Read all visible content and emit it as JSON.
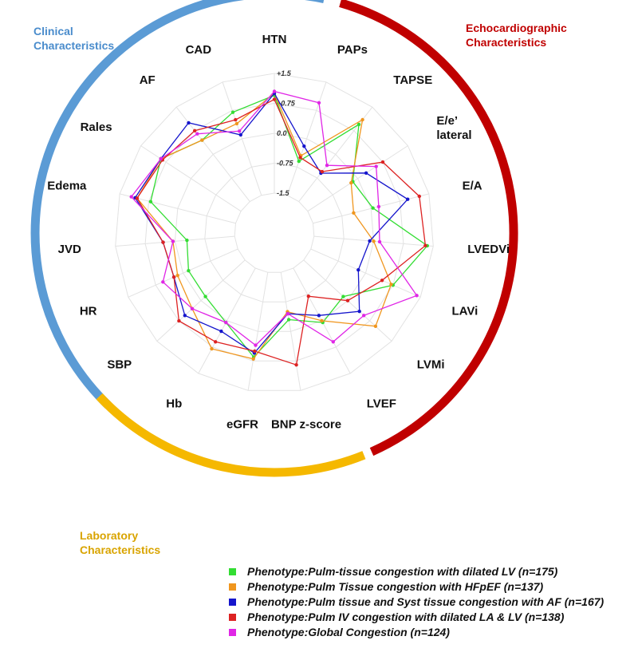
{
  "chart_data": {
    "type": "radar",
    "axes": [
      "HTN",
      "PAPs",
      "TAPSE",
      "E/e’ lateral",
      "E/A",
      "LVEDVi",
      "LAVi",
      "LVMi",
      "LVEF",
      "BNP z-score",
      "eGFR",
      "Hb",
      "SBP",
      "HR",
      "JVD",
      "Edema",
      "Rales",
      "AF",
      "CAD"
    ],
    "ticks": [
      "+1.5",
      "+0.75",
      "0.0",
      "-0.75",
      "-1.5"
    ],
    "tick_values": [
      1.5,
      0.75,
      0.0,
      -0.75,
      -1.5
    ],
    "rlim": [
      -1.5,
      1.5
    ],
    "groups": [
      {
        "title": "Clinical Characteristics",
        "color": "#5b9bd5",
        "axes": [
          "SBP",
          "HR",
          "JVD",
          "Edema",
          "Rales",
          "AF",
          "CAD",
          "HTN"
        ]
      },
      {
        "title": "Echocardiographic Characteristics",
        "color": "#c00000",
        "axes": [
          "PAPs",
          "TAPSE",
          "E/e’ lateral",
          "E/A",
          "LVEDVi",
          "LAVi",
          "LVMi",
          "LVEF"
        ]
      },
      {
        "title": "Laboratory Characteristics",
        "color": "#f5b800",
        "axes": [
          "BNP z-score",
          "eGFR",
          "Hb"
        ]
      }
    ],
    "series": [
      {
        "name": "Phenotype:Pulm-tissue congestion with dilated LV (n=175)",
        "color": "#33dd33",
        "values": [
          0.95,
          -0.6,
          0.95,
          -0.15,
          0.05,
          1.35,
          0.75,
          -0.15,
          0.05,
          -0.3,
          0.65,
          0.05,
          -0.15,
          -0.15,
          -0.3,
          0.7,
          0.9,
          0.45,
          0.7
        ]
      },
      {
        "name": "Phenotype:Pulm Tissue congestion with HFpEF (n=137)",
        "color": "#f0961e",
        "values": [
          1.0,
          -0.45,
          1.1,
          -0.2,
          -0.45,
          0.0,
          0.7,
          0.95,
          0.0,
          -0.5,
          0.7,
          0.8,
          0.3,
          0.15,
          0.05,
          1.05,
          0.9,
          0.45,
          0.4
        ]
      },
      {
        "name": "Phenotype:Pulm tissue and Syst tissue congestion with AF (n=167)",
        "color": "#1515cc",
        "values": [
          1.0,
          -0.2,
          -0.6,
          0.25,
          0.95,
          -0.1,
          -0.2,
          0.4,
          -0.15,
          -0.45,
          0.55,
          0.3,
          0.55,
          0.25,
          0.3,
          1.1,
          0.9,
          1.0,
          0.1
        ]
      },
      {
        "name": "Phenotype:Pulm IV congestion with dilated LA & LV (n=138)",
        "color": "#dd2222",
        "values": [
          0.85,
          -0.5,
          -0.55,
          0.75,
          1.25,
          1.3,
          0.45,
          0.0,
          -0.7,
          0.85,
          0.5,
          0.6,
          0.75,
          0.25,
          0.3,
          1.05,
          0.85,
          0.75,
          0.5
        ]
      },
      {
        "name": "Phenotype:Global Congestion (n=124)",
        "color": "#e026e6",
        "values": [
          1.05,
          0.95,
          -0.35,
          0.55,
          0.2,
          0.15,
          1.4,
          0.55,
          0.6,
          -0.45,
          0.35,
          0.05,
          0.3,
          0.55,
          0.05,
          1.2,
          0.9,
          0.65,
          0.2
        ]
      }
    ]
  }
}
